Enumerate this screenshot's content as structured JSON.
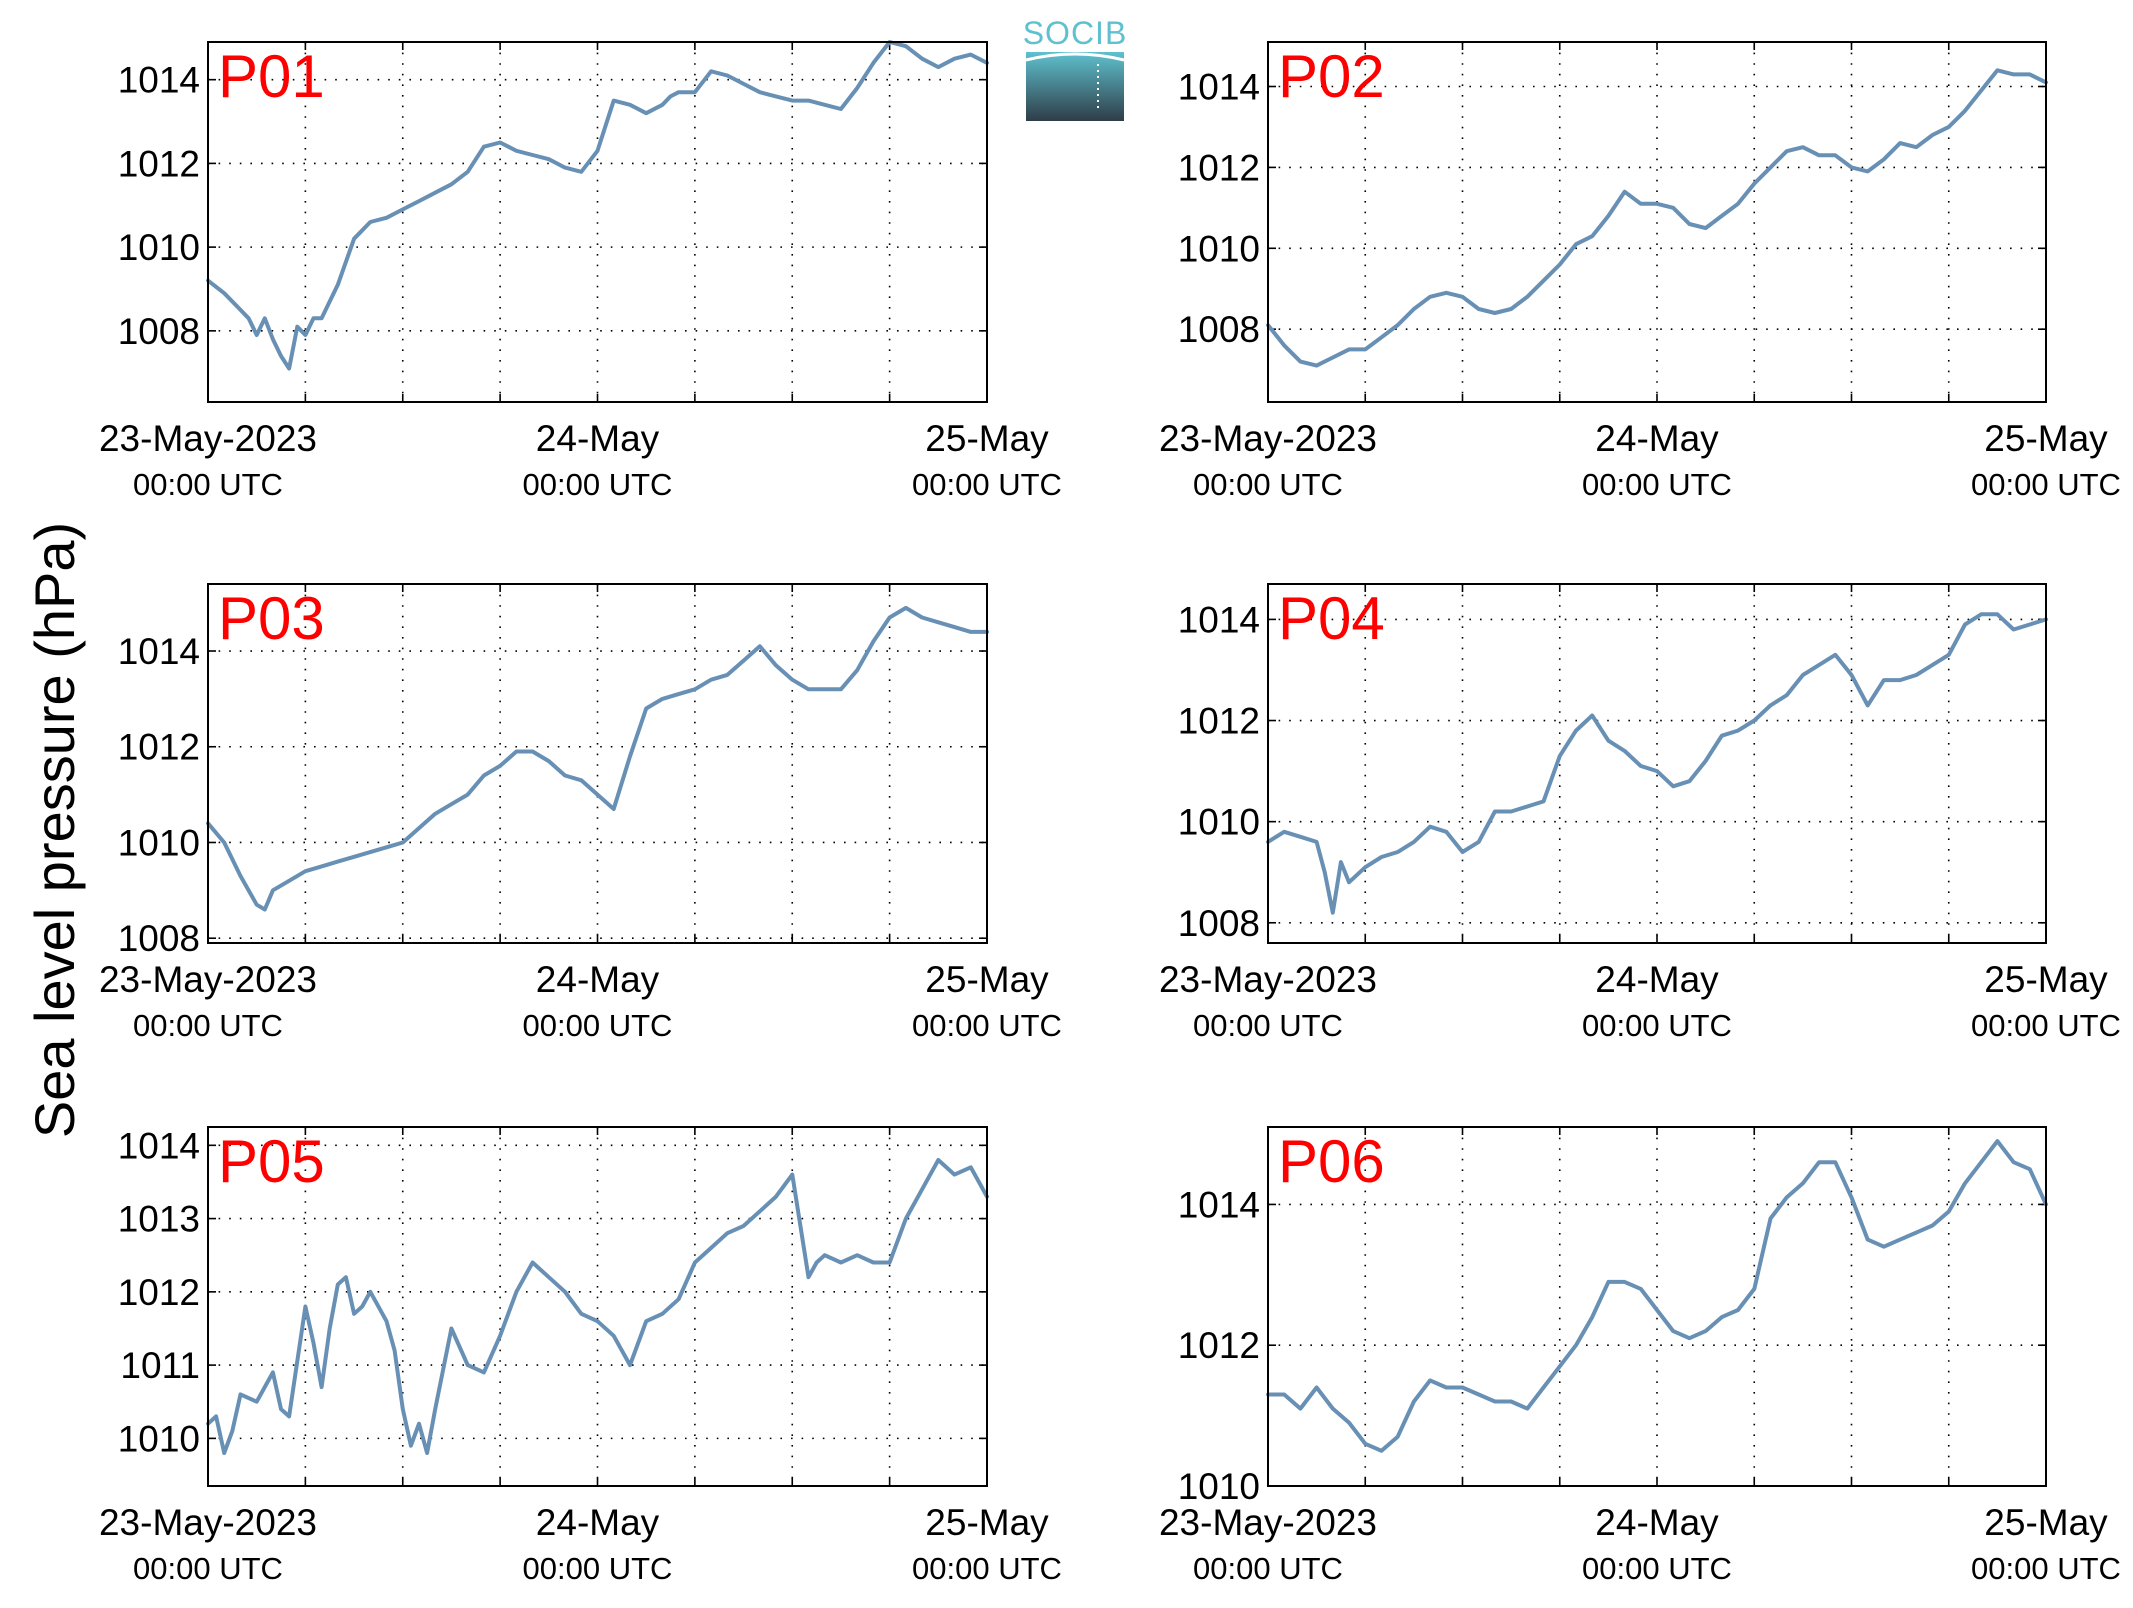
{
  "figure": {
    "ylabel": "Sea level pressure (hPa)",
    "logo_text": "SOCIB",
    "colors": {
      "series": "#6890b5",
      "panel_label": "#ff0000",
      "logo_top": "#5fc1cf",
      "logo_bottom": "#2e3d47"
    }
  },
  "xaxis": {
    "tick_dates": [
      "23-May-2023",
      "24-May",
      "25-May"
    ],
    "tick_times": [
      "00:00 UTC",
      "00:00 UTC",
      "00:00 UTC"
    ],
    "xlim_hours": [
      0,
      48
    ],
    "major_ticks_hours": [
      0,
      24,
      48
    ],
    "minor_grid_hours": [
      6,
      12,
      18,
      24,
      30,
      36,
      42
    ]
  },
  "chart_data": [
    {
      "type": "line",
      "name": "P01",
      "ylim": [
        1006.3,
        1014.9
      ],
      "yticks": [
        1008,
        1010,
        1012,
        1014
      ],
      "x": [
        0,
        1,
        2,
        2.5,
        3,
        3.5,
        4,
        4.5,
        5,
        5.5,
        6,
        6.5,
        7,
        8,
        9,
        10,
        11,
        12,
        13,
        14,
        15,
        16,
        17,
        18,
        19,
        20,
        21,
        22,
        23,
        24,
        25,
        26,
        27,
        28,
        28.5,
        29,
        30,
        31,
        32,
        33,
        34,
        35,
        36,
        37,
        38,
        39,
        40,
        41,
        42,
        43,
        44,
        45,
        46,
        47,
        48
      ],
      "values": [
        1009.2,
        1008.9,
        1008.5,
        1008.3,
        1007.9,
        1008.3,
        1007.8,
        1007.4,
        1007.1,
        1008.1,
        1007.9,
        1008.3,
        1008.3,
        1009.1,
        1010.2,
        1010.6,
        1010.7,
        1010.9,
        1011.1,
        1011.3,
        1011.5,
        1011.8,
        1012.4,
        1012.5,
        1012.3,
        1012.2,
        1012.1,
        1011.9,
        1011.8,
        1012.3,
        1013.5,
        1013.4,
        1013.2,
        1013.4,
        1013.6,
        1013.7,
        1013.7,
        1014.2,
        1014.1,
        1013.9,
        1013.7,
        1013.6,
        1013.5,
        1013.5,
        1013.4,
        1013.3,
        1013.8,
        1014.4,
        1014.9,
        1014.8,
        1014.5,
        1014.3,
        1014.5,
        1014.6,
        1014.4
      ]
    },
    {
      "type": "line",
      "name": "P02",
      "ylim": [
        1006.2,
        1015.1
      ],
      "yticks": [
        1008,
        1010,
        1012,
        1014
      ],
      "x": [
        0,
        1,
        2,
        3,
        4,
        5,
        6,
        7,
        8,
        9,
        10,
        11,
        12,
        13,
        14,
        15,
        16,
        17,
        18,
        19,
        20,
        21,
        22,
        23,
        24,
        25,
        26,
        27,
        28,
        29,
        30,
        31,
        32,
        33,
        34,
        35,
        36,
        37,
        38,
        39,
        40,
        41,
        42,
        43,
        44,
        45,
        46,
        47,
        48
      ],
      "values": [
        1008.1,
        1007.6,
        1007.2,
        1007.1,
        1007.3,
        1007.5,
        1007.5,
        1007.8,
        1008.1,
        1008.5,
        1008.8,
        1008.9,
        1008.8,
        1008.5,
        1008.4,
        1008.5,
        1008.8,
        1009.2,
        1009.6,
        1010.1,
        1010.3,
        1010.8,
        1011.4,
        1011.1,
        1011.1,
        1011.0,
        1010.6,
        1010.5,
        1010.8,
        1011.1,
        1011.6,
        1012.0,
        1012.4,
        1012.5,
        1012.3,
        1012.3,
        1012.0,
        1011.9,
        1012.2,
        1012.6,
        1012.5,
        1012.8,
        1013.0,
        1013.4,
        1013.9,
        1014.4,
        1014.3,
        1014.3,
        1014.1
      ]
    },
    {
      "type": "line",
      "name": "P03",
      "ylim": [
        1007.9,
        1015.4
      ],
      "yticks": [
        1008,
        1010,
        1012,
        1014
      ],
      "x": [
        0,
        1,
        2,
        3,
        3.5,
        4,
        5,
        6,
        7,
        8,
        9,
        10,
        11,
        12,
        13,
        14,
        15,
        16,
        17,
        18,
        19,
        20,
        21,
        22,
        23,
        24,
        25,
        26,
        27,
        28,
        29,
        30,
        31,
        32,
        33,
        34,
        35,
        36,
        37,
        38,
        39,
        40,
        41,
        42,
        43,
        44,
        45,
        46,
        47,
        48
      ],
      "values": [
        1010.4,
        1010.0,
        1009.3,
        1008.7,
        1008.6,
        1009.0,
        1009.2,
        1009.4,
        1009.5,
        1009.6,
        1009.7,
        1009.8,
        1009.9,
        1010.0,
        1010.3,
        1010.6,
        1010.8,
        1011.0,
        1011.4,
        1011.6,
        1011.9,
        1011.9,
        1011.7,
        1011.4,
        1011.3,
        1011.0,
        1010.7,
        1011.8,
        1012.8,
        1013.0,
        1013.1,
        1013.2,
        1013.4,
        1013.5,
        1013.8,
        1014.1,
        1013.7,
        1013.4,
        1013.2,
        1013.2,
        1013.2,
        1013.6,
        1014.2,
        1014.7,
        1014.9,
        1014.7,
        1014.6,
        1014.5,
        1014.4,
        1014.4
      ]
    },
    {
      "type": "line",
      "name": "P04",
      "ylim": [
        1007.6,
        1014.7
      ],
      "yticks": [
        1008,
        1010,
        1012,
        1014
      ],
      "x": [
        0,
        1,
        2,
        3,
        3.5,
        4,
        4.5,
        5,
        6,
        7,
        8,
        9,
        10,
        11,
        12,
        13,
        14,
        15,
        16,
        17,
        18,
        19,
        20,
        21,
        22,
        23,
        24,
        25,
        26,
        27,
        28,
        29,
        30,
        31,
        32,
        33,
        34,
        35,
        36,
        37,
        38,
        39,
        40,
        41,
        42,
        43,
        44,
        45,
        46,
        47,
        48
      ],
      "values": [
        1009.6,
        1009.8,
        1009.7,
        1009.6,
        1009.0,
        1008.2,
        1009.2,
        1008.8,
        1009.1,
        1009.3,
        1009.4,
        1009.6,
        1009.9,
        1009.8,
        1009.4,
        1009.6,
        1010.2,
        1010.2,
        1010.3,
        1010.4,
        1011.3,
        1011.8,
        1012.1,
        1011.6,
        1011.4,
        1011.1,
        1011.0,
        1010.7,
        1010.8,
        1011.2,
        1011.7,
        1011.8,
        1012.0,
        1012.3,
        1012.5,
        1012.9,
        1013.1,
        1013.3,
        1012.9,
        1012.3,
        1012.8,
        1012.8,
        1012.9,
        1013.1,
        1013.3,
        1013.9,
        1014.1,
        1014.1,
        1013.8,
        1013.9,
        1014.0
      ]
    },
    {
      "type": "line",
      "name": "P05",
      "ylim": [
        1009.35,
        1014.25
      ],
      "yticks": [
        1010,
        1011,
        1012,
        1013,
        1014
      ],
      "x": [
        0,
        0.5,
        1,
        1.5,
        2,
        3,
        4,
        4.5,
        5,
        6,
        6.5,
        7,
        7.5,
        8,
        8.5,
        9,
        9.5,
        10,
        11,
        11.5,
        12,
        12.5,
        13,
        13.5,
        14,
        15,
        16,
        17,
        18,
        19,
        20,
        21,
        22,
        23,
        24,
        25,
        26,
        27,
        28,
        29,
        30,
        31,
        32,
        33,
        34,
        35,
        36,
        37,
        37.5,
        38,
        39,
        40,
        41,
        42,
        43,
        44,
        45,
        46,
        47,
        48
      ],
      "values": [
        1010.2,
        1010.3,
        1009.8,
        1010.1,
        1010.6,
        1010.5,
        1010.9,
        1010.4,
        1010.3,
        1011.8,
        1011.3,
        1010.7,
        1011.5,
        1012.1,
        1012.2,
        1011.7,
        1011.8,
        1012.0,
        1011.6,
        1011.2,
        1010.4,
        1009.9,
        1010.2,
        1009.8,
        1010.4,
        1011.5,
        1011.0,
        1010.9,
        1011.4,
        1012.0,
        1012.4,
        1012.2,
        1012.0,
        1011.7,
        1011.6,
        1011.4,
        1011.0,
        1011.6,
        1011.7,
        1011.9,
        1012.4,
        1012.6,
        1012.8,
        1012.9,
        1013.1,
        1013.3,
        1013.6,
        1012.2,
        1012.4,
        1012.5,
        1012.4,
        1012.5,
        1012.4,
        1012.4,
        1013.0,
        1013.4,
        1013.8,
        1013.6,
        1013.7,
        1013.3
      ]
    },
    {
      "type": "line",
      "name": "P06",
      "ylim": [
        1010.0,
        1015.1
      ],
      "yticks": [
        1010,
        1012,
        1014
      ],
      "x": [
        0,
        1,
        2,
        3,
        4,
        5,
        6,
        7,
        8,
        9,
        10,
        11,
        12,
        13,
        14,
        15,
        16,
        17,
        18,
        19,
        20,
        21,
        22,
        23,
        24,
        25,
        26,
        27,
        28,
        29,
        30,
        31,
        32,
        33,
        34,
        35,
        36,
        37,
        38,
        39,
        40,
        41,
        42,
        43,
        44,
        45,
        46,
        47,
        48
      ],
      "values": [
        1011.3,
        1011.3,
        1011.1,
        1011.4,
        1011.1,
        1010.9,
        1010.6,
        1010.5,
        1010.7,
        1011.2,
        1011.5,
        1011.4,
        1011.4,
        1011.3,
        1011.2,
        1011.2,
        1011.1,
        1011.4,
        1011.7,
        1012.0,
        1012.4,
        1012.9,
        1012.9,
        1012.8,
        1012.5,
        1012.2,
        1012.1,
        1012.2,
        1012.4,
        1012.5,
        1012.8,
        1013.8,
        1014.1,
        1014.3,
        1014.6,
        1014.6,
        1014.1,
        1013.5,
        1013.4,
        1013.5,
        1013.6,
        1013.7,
        1013.9,
        1014.3,
        1014.6,
        1014.9,
        1014.6,
        1014.5,
        1014.0
      ]
    }
  ]
}
